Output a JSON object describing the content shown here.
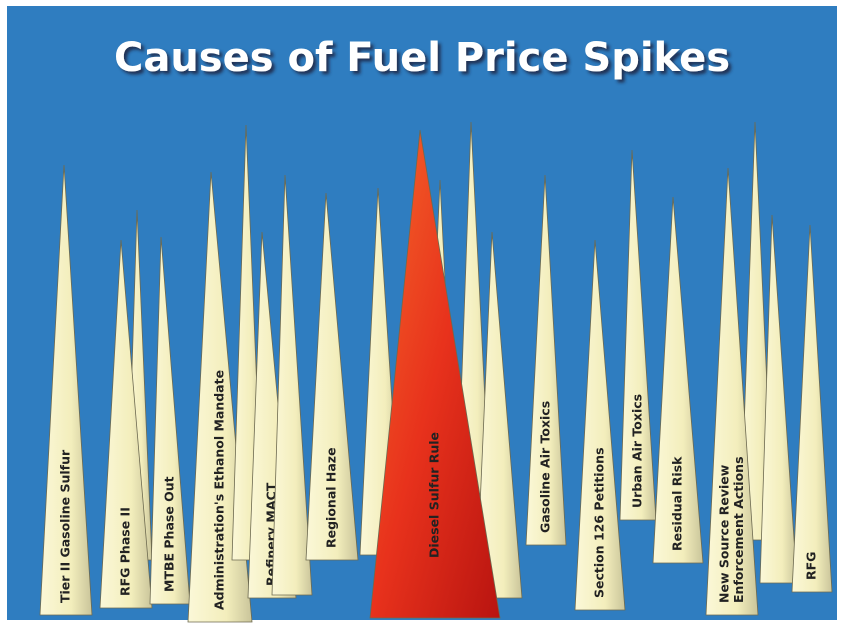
{
  "title": "Causes of Fuel Price Spikes",
  "spikes": [
    {
      "lines": [
        "Tier II Gasoline Sulfur"
      ]
    },
    {
      "lines": [
        "RFG Phase II"
      ]
    },
    {
      "lines": [
        "MTBE Phase Out"
      ]
    },
    {
      "lines": [
        "Administration's Ethanol Mandate"
      ]
    },
    {
      "lines": [
        "Refinery MACT"
      ]
    },
    {
      "lines": [
        "Regional Haze"
      ]
    },
    {
      "lines": [
        "Diesel Sulfur Rule"
      ]
    },
    {
      "lines": [
        "Gasoline Air Toxics"
      ]
    },
    {
      "lines": [
        "Section 126 Petitions"
      ]
    },
    {
      "lines": [
        "Urban Air Toxics"
      ]
    },
    {
      "lines": [
        "Residual Risk"
      ]
    },
    {
      "lines": [
        "New Source Review",
        "Enforcement Actions"
      ]
    },
    {
      "lines": [
        "RFG"
      ]
    }
  ]
}
